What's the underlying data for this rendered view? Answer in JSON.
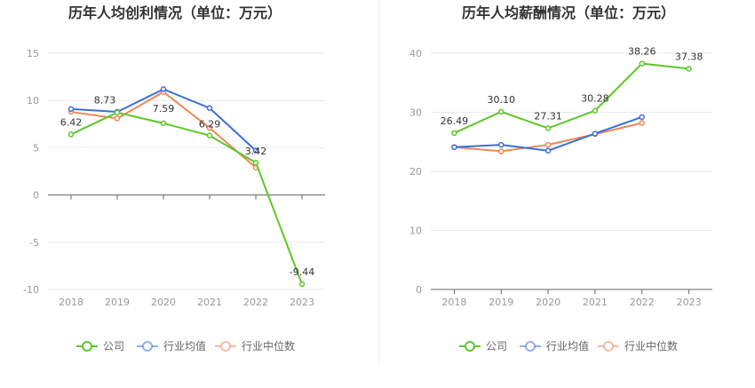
{
  "legend": [
    "公司",
    "行业均值",
    "行业中位数"
  ],
  "colors": {
    "公司": "#5ec72a",
    "行业均值": "#3b6fd8",
    "行业中位数": "#f0875a"
  },
  "chart_data": [
    {
      "type": "line",
      "title": "历年人均创利情况（单位：万元）",
      "categories": [
        "2018",
        "2019",
        "2020",
        "2021",
        "2022",
        "2023"
      ],
      "ylim": [
        -10,
        15
      ],
      "yticks": [
        15,
        10,
        5,
        0,
        -5,
        -10
      ],
      "grid": true,
      "legend_position": "bottom",
      "series": [
        {
          "name": "公司",
          "values": [
            6.42,
            8.73,
            7.59,
            6.29,
            3.42,
            -9.44
          ],
          "labels": [
            "6.42",
            "8.73",
            "7.59",
            "6.29",
            "3.42",
            "-9.44"
          ]
        },
        {
          "name": "行业均值",
          "values": [
            9.1,
            8.8,
            11.2,
            9.2,
            4.7,
            null
          ]
        },
        {
          "name": "行业中位数",
          "values": [
            8.8,
            8.1,
            10.9,
            7.1,
            2.9,
            null
          ]
        }
      ]
    },
    {
      "type": "line",
      "title": "历年人均薪酬情况（单位：万元）",
      "categories": [
        "2018",
        "2019",
        "2020",
        "2021",
        "2022",
        "2023"
      ],
      "ylim": [
        0,
        40
      ],
      "yticks": [
        40,
        30,
        20,
        10,
        0
      ],
      "grid": true,
      "legend_position": "bottom",
      "series": [
        {
          "name": "公司",
          "values": [
            26.49,
            30.1,
            27.31,
            30.28,
            38.26,
            37.38
          ],
          "labels": [
            "26.49",
            "30.10",
            "27.31",
            "30.28",
            "38.26",
            "37.38"
          ]
        },
        {
          "name": "行业均值",
          "values": [
            24.1,
            24.5,
            23.5,
            26.4,
            29.2,
            null
          ]
        },
        {
          "name": "行业中位数",
          "values": [
            24.1,
            23.4,
            24.5,
            26.3,
            28.2,
            null
          ]
        }
      ]
    }
  ]
}
